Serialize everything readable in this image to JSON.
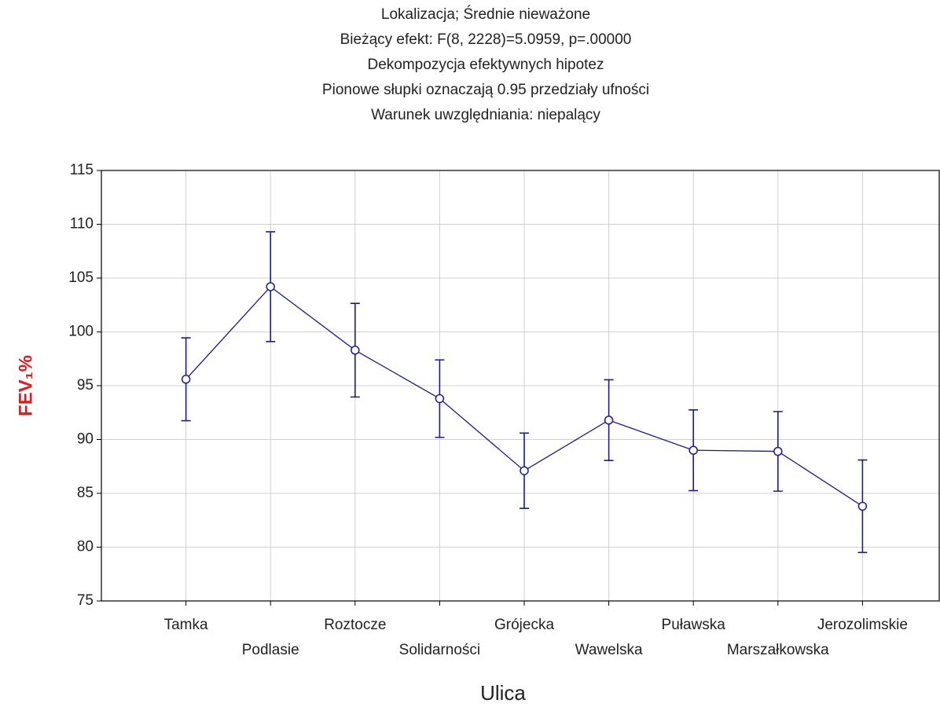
{
  "chart_data": {
    "type": "line",
    "title": [
      "Lokalizacja; Średnie nieważone",
      "Bieżący efekt: F(8, 2228)=5.0959, p=.00000",
      "Dekompozycja efektywnych hipotez",
      "Pionowe słupki oznaczają 0.95 przedziały ufności",
      "Warunek uwzględniania: niepalący"
    ],
    "xlabel": "Ulica",
    "ylabel": "FEV₁%",
    "categories": [
      "Tamka",
      "Podlasie",
      "Roztocze",
      "Solidarności",
      "Grójecka",
      "Wawelska",
      "Puławska",
      "Marszałkowska",
      "Jerozolimskie"
    ],
    "series": [
      {
        "color": "#1c1c8a",
        "values": [
          95.6,
          104.2,
          98.3,
          93.8,
          87.1,
          91.8,
          89.0,
          88.9,
          83.8
        ],
        "errors": [
          3.85,
          5.1,
          4.35,
          3.6,
          3.5,
          3.75,
          3.75,
          3.7,
          4.3
        ]
      }
    ],
    "ylim": [
      75,
      115
    ],
    "yticks": [
      75,
      80,
      85,
      90,
      95,
      100,
      105,
      110,
      115
    ],
    "grid": true,
    "ylabel_color": "#d42020"
  }
}
